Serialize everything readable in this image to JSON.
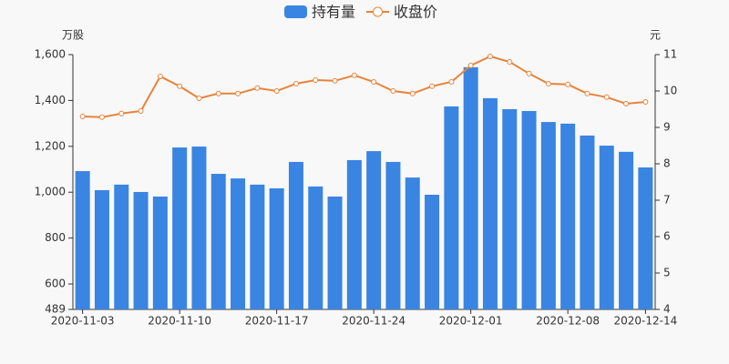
{
  "chart_data": {
    "type": "bar-line",
    "y_unit": "万股",
    "y2_unit": "元",
    "categories": [
      "2020-11-03",
      null,
      null,
      null,
      null,
      "2020-11-10",
      null,
      null,
      null,
      null,
      "2020-11-17",
      null,
      null,
      null,
      null,
      "2020-11-24",
      null,
      null,
      null,
      null,
      "2020-12-01",
      null,
      null,
      null,
      null,
      "2020-12-08",
      null,
      null,
      null,
      "2020-12-14"
    ],
    "series": [
      {
        "name": "持有量",
        "type": "bar",
        "color": "#3a84e2",
        "values": [
          1092,
          1009,
          1033,
          1001,
          981,
          1195,
          1199,
          1080,
          1060,
          1033,
          1017,
          1132,
          1025,
          981,
          1140,
          1179,
          1132,
          1064,
          989,
          1374,
          1545,
          1410,
          1362,
          1354,
          1306,
          1299,
          1247,
          1203,
          1176,
          1108
        ]
      },
      {
        "name": "收盘价",
        "type": "line",
        "axis": "y2",
        "color": "#e8833a",
        "values": [
          9.3,
          9.28,
          9.38,
          9.45,
          10.4,
          10.13,
          9.8,
          9.93,
          9.93,
          10.08,
          10.0,
          10.2,
          10.3,
          10.28,
          10.43,
          10.25,
          10.0,
          9.93,
          10.13,
          10.25,
          10.7,
          10.95,
          10.8,
          10.48,
          10.2,
          10.18,
          9.93,
          9.83,
          9.65,
          9.7
        ]
      }
    ],
    "ylim": [
      489,
      1600
    ],
    "yticks": [
      489,
      600,
      800,
      {
        "value": 1000,
        "label": "1,000"
      },
      {
        "value": 1200,
        "label": "1,200"
      },
      {
        "value": 1400,
        "label": "1,400"
      },
      {
        "value": 1600,
        "label": "1,600"
      }
    ],
    "y2lim": [
      4,
      11
    ],
    "y2ticks": [
      4,
      5,
      6,
      7,
      8,
      9,
      10,
      11
    ]
  }
}
